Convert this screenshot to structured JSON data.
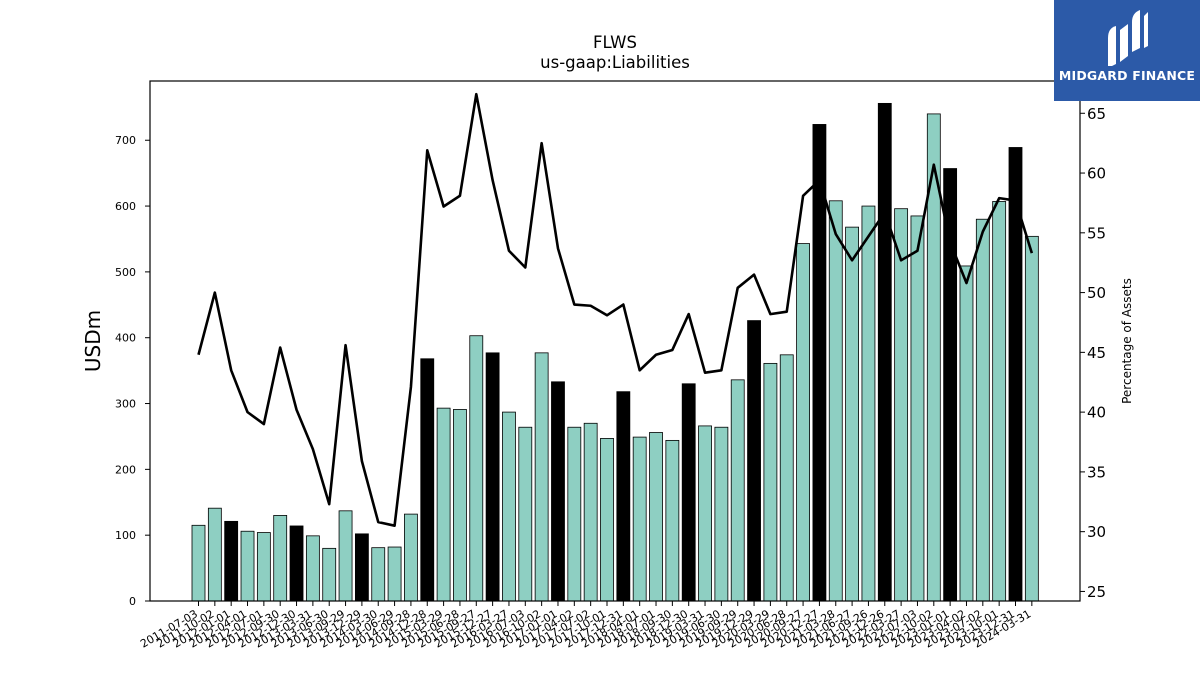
{
  "brand": {
    "name": "MIDGARD FINANCE",
    "bg_color": "#2c5aa8"
  },
  "chart_data": {
    "type": "bar",
    "title": "FLWS",
    "subtitle": "us-gaap:Liabilities",
    "ylabel": "USDm",
    "y2label": "Percentage of Assets",
    "ylim": [
      0,
      790
    ],
    "y2lim": [
      24.2,
      67.7
    ],
    "yticks": [
      0,
      100,
      200,
      300,
      400,
      500,
      600,
      700
    ],
    "y2ticks": [
      25,
      30,
      35,
      40,
      45,
      50,
      55,
      60,
      65
    ],
    "bar_color": "#8ecfc2",
    "highlight_color": "#000000",
    "line_color": "#000000",
    "categories": [
      "2011-07-03",
      "2011-10-02",
      "2012-01-01",
      "2012-04-01",
      "2012-07-01",
      "2012-09-30",
      "2012-12-30",
      "2013-03-31",
      "2013-06-30",
      "2013-09-29",
      "2013-12-29",
      "2014-03-30",
      "2014-06-29",
      "2014-09-28",
      "2014-12-28",
      "2015-03-29",
      "2015-06-28",
      "2015-09-27",
      "2015-12-27",
      "2016-03-27",
      "2016-07-03",
      "2016-10-02",
      "2017-01-01",
      "2017-04-02",
      "2017-07-02",
      "2017-10-01",
      "2017-12-31",
      "2018-04-01",
      "2018-07-01",
      "2018-09-30",
      "2018-12-30",
      "2019-03-31",
      "2019-06-30",
      "2019-09-29",
      "2019-12-29",
      "2020-03-29",
      "2020-06-28",
      "2020-09-27",
      "2020-12-27",
      "2021-03-28",
      "2021-06-27",
      "2021-09-26",
      "2021-12-26",
      "2022-03-27",
      "2022-07-03",
      "2022-10-02",
      "2023-01-01",
      "2023-04-02",
      "2023-07-02",
      "2023-10-01",
      "2023-12-31",
      "2024-03-31"
    ],
    "tick_labels": [
      "2011-07-03",
      "2011-10-02",
      "2012-01-01",
      "2012-04-01",
      "2012-07-01",
      "2012-09-30",
      "2012-12-30",
      "2013-03-31",
      "2013-06-30",
      "2013-09-29",
      "2013-12-29",
      "2014-03-30",
      "2014-06-29",
      "2014-09-28",
      "2014-12-28",
      "2015-03-29",
      "2015-06-28",
      "2015-09-27",
      "2015-12-27",
      "2016-03-27",
      "2016-07-03",
      "2016-10-02",
      "2017-01-01",
      "2017-04-02",
      "2017-07-02",
      "2017-10-01",
      "2017-12-31",
      "2018-04-01",
      "2018-07-01",
      "2018-09-30",
      "2018-12-30",
      "2019-03-31",
      "2019-06-30",
      "2019-09-29",
      "2019-12-29",
      "2020-03-29",
      "2020-06-28",
      "2020-09-27",
      "2020-12-27",
      "2021-03-28",
      "2021-06-27",
      "2021-09-26",
      "2021-12-26",
      "2022-03-27",
      "2022-07-03",
      "2022-10-02",
      "2023-01-01",
      "2023-04-02",
      "2023-07-02",
      "2023-10-01",
      "2023-12-31",
      "2024-03-31"
    ],
    "series": [
      {
        "name": "Liabilities",
        "kind": "bar",
        "axis": "left",
        "values": [
          115,
          141,
          121,
          106,
          104,
          130,
          114,
          99,
          80,
          137,
          102,
          81,
          82,
          132,
          368,
          293,
          291,
          403,
          377,
          287,
          264,
          377,
          333,
          264,
          270,
          247,
          318,
          249,
          256,
          244,
          330,
          266,
          264,
          336,
          426,
          361,
          374,
          543,
          724,
          608,
          568,
          600,
          756,
          596,
          585,
          740,
          657,
          509,
          580,
          607,
          689,
          554
        ],
        "highlight": [
          false,
          false,
          true,
          false,
          false,
          false,
          true,
          false,
          false,
          false,
          true,
          false,
          false,
          false,
          true,
          false,
          false,
          false,
          true,
          false,
          false,
          false,
          true,
          false,
          false,
          false,
          true,
          false,
          false,
          false,
          true,
          false,
          false,
          false,
          true,
          false,
          false,
          false,
          true,
          false,
          false,
          false,
          true,
          false,
          false,
          false,
          true,
          false,
          false,
          false,
          true,
          false
        ]
      },
      {
        "name": "Percentage of Assets",
        "kind": "line",
        "axis": "right",
        "values": [
          44.8,
          50.0,
          43.5,
          40.0,
          39.0,
          45.4,
          40.2,
          36.9,
          32.3,
          45.6,
          35.9,
          30.8,
          30.5,
          42.1,
          61.9,
          57.2,
          58.1,
          66.6,
          59.4,
          53.5,
          52.1,
          62.5,
          53.7,
          49.0,
          48.9,
          48.1,
          49.0,
          43.5,
          44.8,
          45.2,
          48.2,
          43.3,
          43.5,
          50.4,
          51.5,
          48.2,
          48.4,
          58.1,
          59.4,
          54.9,
          52.7,
          54.7,
          56.7,
          52.7,
          53.5,
          60.7,
          54.2,
          50.8,
          55.1,
          57.9,
          57.7,
          53.3
        ]
      }
    ]
  }
}
